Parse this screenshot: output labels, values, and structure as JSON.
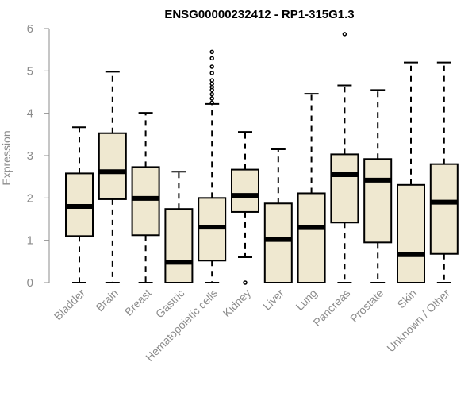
{
  "chart_data": {
    "type": "boxplot",
    "title": "ENSG00000232412 - RP1-315G1.3",
    "xlabel": "",
    "ylabel": "Expression",
    "ylim": [
      0,
      6
    ],
    "yticks": [
      "0",
      "1",
      "2",
      "3",
      "4",
      "5",
      "6"
    ],
    "categories": [
      "Bladder",
      "Brain",
      "Breast",
      "Gastric",
      "Hematopoietic cells",
      "Kidney",
      "Liver",
      "Lung",
      "Pancreas",
      "Prostate",
      "Skin",
      "Unknown / Other"
    ],
    "series": [
      {
        "name": "Bladder",
        "min": 0,
        "q1": 1.1,
        "median": 1.8,
        "q3": 2.58,
        "max": 3.67,
        "outliers": []
      },
      {
        "name": "Brain",
        "min": 0,
        "q1": 1.97,
        "median": 2.62,
        "q3": 3.53,
        "max": 4.98,
        "outliers": []
      },
      {
        "name": "Breast",
        "min": 0,
        "q1": 1.12,
        "median": 1.99,
        "q3": 2.73,
        "max": 4.01,
        "outliers": []
      },
      {
        "name": "Gastric",
        "min": 0,
        "q1": 0,
        "median": 0.48,
        "q3": 1.74,
        "max": 2.62,
        "outliers": []
      },
      {
        "name": "Hematopoietic cells",
        "min": 0,
        "q1": 0.52,
        "median": 1.31,
        "q3": 2.0,
        "max": 4.22,
        "outliers": [
          4.25,
          4.35,
          4.45,
          4.55,
          4.62,
          4.7,
          4.78,
          4.95,
          5.1,
          5.3,
          5.45
        ]
      },
      {
        "name": "Kidney",
        "min": 0.6,
        "q1": 1.67,
        "median": 2.06,
        "q3": 2.67,
        "max": 3.56,
        "outliers": [
          0
        ]
      },
      {
        "name": "Liver",
        "min": 0,
        "q1": 0,
        "median": 1.02,
        "q3": 1.87,
        "max": 3.15,
        "outliers": []
      },
      {
        "name": "Lung",
        "min": 0,
        "q1": 0,
        "median": 1.3,
        "q3": 2.11,
        "max": 4.46,
        "outliers": []
      },
      {
        "name": "Pancreas",
        "min": 0,
        "q1": 1.42,
        "median": 2.55,
        "q3": 3.03,
        "max": 4.66,
        "outliers": [
          5.87
        ]
      },
      {
        "name": "Prostate",
        "min": 0,
        "q1": 0.95,
        "median": 2.42,
        "q3": 2.92,
        "max": 4.55,
        "outliers": []
      },
      {
        "name": "Skin",
        "min": 0,
        "q1": 0,
        "median": 0.66,
        "q3": 2.31,
        "max": 5.2,
        "outliers": []
      },
      {
        "name": "Unknown / Other",
        "min": 0,
        "q1": 0.68,
        "median": 1.9,
        "q3": 2.8,
        "max": 5.2,
        "outliers": []
      }
    ],
    "colors": {
      "box_fill": "#efe8d0",
      "stroke": "#000000",
      "axis_text": "#8c8c8c"
    }
  }
}
